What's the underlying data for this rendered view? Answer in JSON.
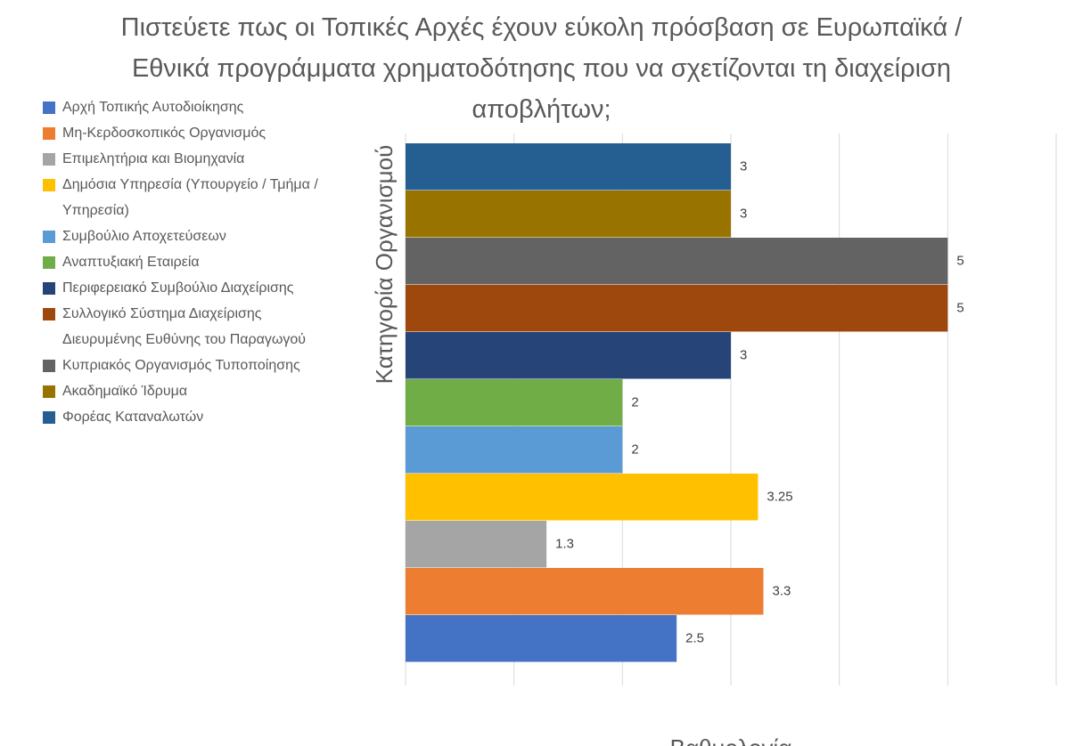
{
  "chart_data": {
    "type": "bar",
    "orientation": "horizontal",
    "title": "Πιστεύετε πως οι Τοπικές Αρχές έχουν εύκολη πρόσβαση σε Ευρωπαϊκά / Εθνικά προγράμματα χρηματοδότησης που να σχετίζονται τη διαχείριση αποβλήτων;",
    "ylabel": "Κατηγορία Οργανισμού",
    "xlabel": "Βαθμολογία",
    "xlim": [
      0,
      6
    ],
    "xticks": [
      0,
      1,
      2,
      3,
      4,
      5,
      6
    ],
    "grid": true,
    "legend": "left",
    "series": [
      {
        "name": "Αρχή Τοπικής Αυτοδιοίκησης",
        "color": "#4472c4",
        "values": [
          2.5
        ]
      },
      {
        "name": "Μη-Κερδοσκοπικός Οργανισμός",
        "color": "#ed7d31",
        "values": [
          3.3
        ]
      },
      {
        "name": "Επιμελητήρια και Βιομηχανία",
        "color": "#a5a5a5",
        "values": [
          1.3
        ]
      },
      {
        "name": "Δημόσια Υπηρεσία (Υπουργείο / Τμήμα / Υπηρεσία)",
        "color": "#ffc000",
        "values": [
          3.25
        ]
      },
      {
        "name": "Συμβούλιο Αποχετεύσεων",
        "color": "#5b9bd5",
        "values": [
          2
        ]
      },
      {
        "name": "Αναπτυξιακή Εταιρεία",
        "color": "#70ad47",
        "values": [
          2
        ]
      },
      {
        "name": "Περιφερειακό Συμβούλιο Διαχείρισης",
        "color": "#264478",
        "values": [
          3
        ]
      },
      {
        "name": "Συλλογικό Σύστημα Διαχείρισης Διευρυμένης Ευθύνης του Παραγωγού",
        "color": "#9e480e",
        "values": [
          5
        ]
      },
      {
        "name": "Κυπριακός Οργανισμός Τυποποίησης",
        "color": "#636363",
        "values": [
          5
        ]
      },
      {
        "name": "Ακαδημαϊκό Ίδρυμα",
        "color": "#997300",
        "values": [
          3
        ]
      },
      {
        "name": "Φορέας Καταναλωτών",
        "color": "#255e91",
        "values": [
          3
        ]
      }
    ]
  }
}
